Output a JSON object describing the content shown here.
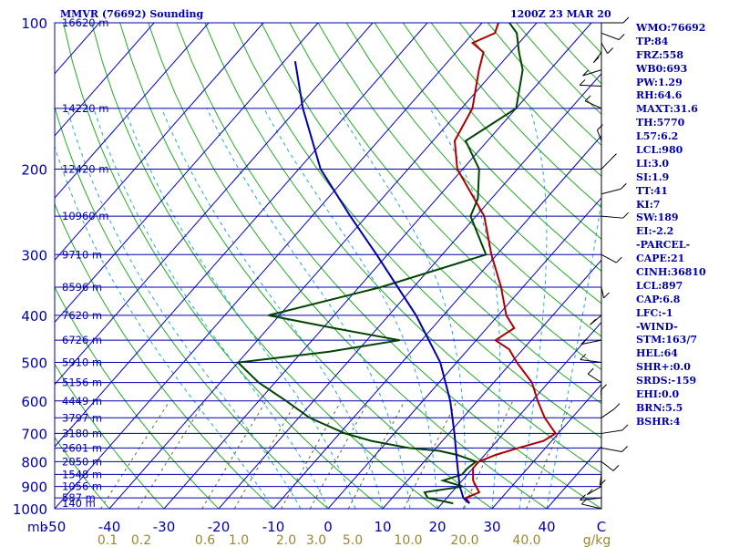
{
  "title_left": "MMVR (76692) Sounding",
  "title_right": "1200Z 23 MAR 20",
  "sidebar": [
    "WMO:76692",
    "TP:84",
    "FRZ:558",
    "WB0:693",
    "PW:1.29",
    "RH:64.6",
    "MAXT:31.6",
    "TH:5770",
    "L57:6.2",
    "LCL:980",
    "LI:3.0",
    "SI:1.9",
    "TT:41",
    "KI:7",
    "SW:189",
    "EI:-2.2",
    "-PARCEL-",
    "CAPE:21",
    "CINH:36810",
    "LCL:897",
    "CAP:6.8",
    "LFC:-1",
    "-WIND-",
    "STM:163/7",
    "HEL:64",
    "SHR+:0.0",
    "SRDS:-159",
    "EHI:0.0",
    "BRN:5.5",
    "BSHR:4"
  ],
  "chart_data": {
    "type": "skew-t",
    "pressure_unit_label": "mb",
    "pressure_ticks": [
      100,
      200,
      300,
      400,
      500,
      600,
      700,
      800,
      900,
      1000
    ],
    "temperature_ticks": [
      "-50",
      "-40",
      "-30",
      "-20",
      "-10",
      "0",
      "10",
      "20",
      "30",
      "40",
      "C"
    ],
    "mixing_ratio_labels": [
      "0.1",
      "0.2",
      "0.6",
      "1.0",
      "2.0",
      "3.0",
      "5.0",
      "10.0",
      "20.0",
      "40.0",
      "g/kg"
    ],
    "mixing_ratio_values": [
      0.1,
      0.2,
      0.6,
      1.0,
      2.0,
      3.0,
      5.0,
      10.0,
      20.0,
      40.0
    ],
    "height_levels": [
      {
        "p": 100,
        "label": "16620 m"
      },
      {
        "p": 150,
        "label": "14220 m"
      },
      {
        "p": 200,
        "label": "12420 m"
      },
      {
        "p": 250,
        "label": "10960 m"
      },
      {
        "p": 300,
        "label": "9710 m"
      },
      {
        "p": 350,
        "label": "8596 m"
      },
      {
        "p": 400,
        "label": "7620 m"
      },
      {
        "p": 450,
        "label": "6726 m"
      },
      {
        "p": 500,
        "label": "5910 m"
      },
      {
        "p": 550,
        "label": "5156 m"
      },
      {
        "p": 600,
        "label": "4449 m"
      },
      {
        "p": 650,
        "label": "3797 m"
      },
      {
        "p": 700,
        "label": "3180 m"
      },
      {
        "p": 750,
        "label": "2601 m"
      },
      {
        "p": 800,
        "label": "2050 m"
      },
      {
        "p": 850,
        "label": "1548 m"
      },
      {
        "p": 900,
        "label": "1056 m"
      },
      {
        "p": 950,
        "label": "587 m"
      },
      {
        "p": 975,
        "label": "140 m"
      }
    ],
    "series": [
      {
        "key": "temperature",
        "color": "#aa0000",
        "points": [
          [
            975,
            25
          ],
          [
            950,
            23.5
          ],
          [
            925,
            25
          ],
          [
            900,
            23.5
          ],
          [
            875,
            22
          ],
          [
            850,
            21
          ],
          [
            825,
            20
          ],
          [
            800,
            20
          ],
          [
            775,
            22
          ],
          [
            750,
            25
          ],
          [
            725,
            28.5
          ],
          [
            700,
            29.5
          ],
          [
            650,
            25
          ],
          [
            600,
            21
          ],
          [
            550,
            17
          ],
          [
            500,
            11
          ],
          [
            470,
            7.5
          ],
          [
            450,
            3.5
          ],
          [
            425,
            5
          ],
          [
            400,
            1.5
          ],
          [
            350,
            -4
          ],
          [
            300,
            -11
          ],
          [
            250,
            -18.5
          ],
          [
            200,
            -31
          ],
          [
            175,
            -36
          ],
          [
            150,
            -38
          ],
          [
            125,
            -43
          ],
          [
            115,
            -45
          ],
          [
            110,
            -48.5
          ],
          [
            105,
            -46
          ],
          [
            100,
            -47
          ]
        ]
      },
      {
        "key": "dewpoint",
        "color": "#004400",
        "points": [
          [
            975,
            22
          ],
          [
            950,
            16.5
          ],
          [
            925,
            15
          ],
          [
            900,
            21
          ],
          [
            875,
            16.5
          ],
          [
            850,
            19
          ],
          [
            825,
            19
          ],
          [
            800,
            19.5
          ],
          [
            775,
            15
          ],
          [
            760,
            11
          ],
          [
            750,
            5
          ],
          [
            725,
            -3
          ],
          [
            700,
            -9
          ],
          [
            650,
            -18
          ],
          [
            600,
            -25
          ],
          [
            550,
            -33
          ],
          [
            500,
            -40
          ],
          [
            475,
            -25
          ],
          [
            450,
            -14
          ],
          [
            425,
            -28
          ],
          [
            400,
            -42
          ],
          [
            350,
            -26
          ],
          [
            300,
            -12
          ],
          [
            250,
            -21
          ],
          [
            230,
            -22.5
          ],
          [
            200,
            -27
          ],
          [
            175,
            -34
          ],
          [
            150,
            -30
          ],
          [
            125,
            -35
          ],
          [
            115,
            -38.5
          ],
          [
            105,
            -42
          ],
          [
            100,
            -45
          ]
        ]
      },
      {
        "key": "parcel",
        "color": "#0000aa",
        "points": [
          [
            975,
            25
          ],
          [
            950,
            23
          ],
          [
            925,
            21.8
          ],
          [
            900,
            20.5
          ],
          [
            800,
            16
          ],
          [
            700,
            11
          ],
          [
            600,
            5
          ],
          [
            500,
            -3
          ],
          [
            400,
            -15
          ],
          [
            300,
            -32
          ],
          [
            250,
            -43
          ],
          [
            200,
            -56
          ],
          [
            150,
            -69
          ],
          [
            120,
            -78
          ]
        ]
      }
    ],
    "wind_barbs_present": true,
    "grid": true
  }
}
